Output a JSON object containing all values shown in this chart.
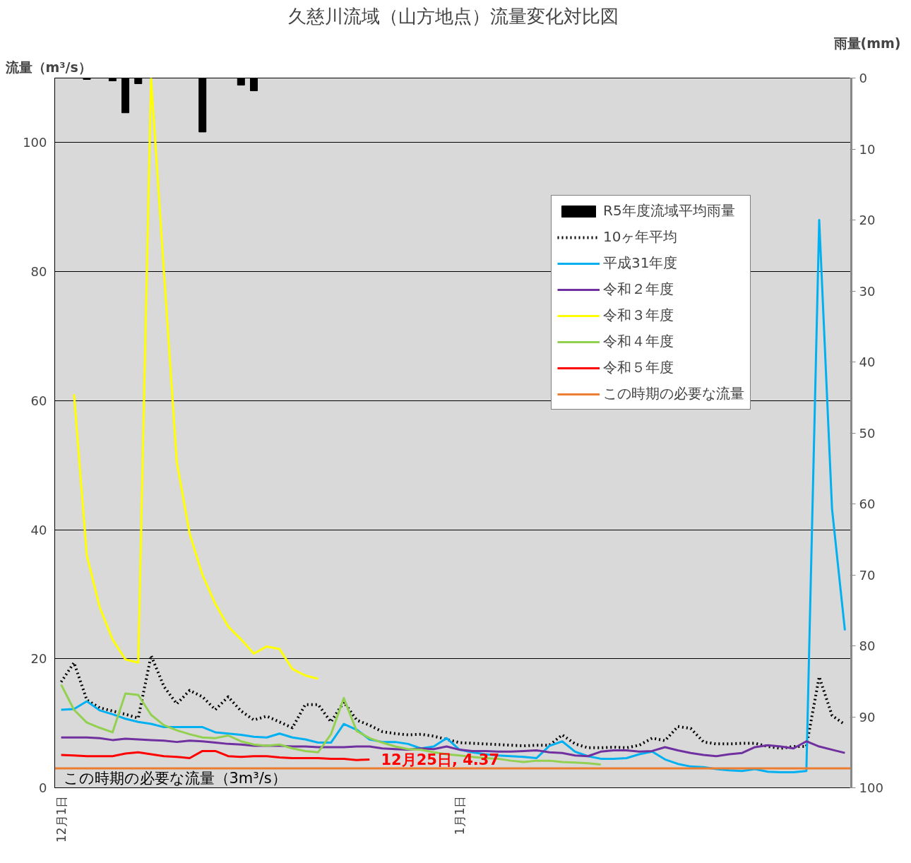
{
  "chart_data": {
    "type": "line",
    "title": "久慈川流域（山方地点）流量変化対比図",
    "ylabel": "流量（m³/s）",
    "y2label": "雨量(mm)",
    "categories": [
      "12月1日",
      null,
      null,
      null,
      null,
      null,
      null,
      null,
      null,
      null,
      null,
      null,
      null,
      null,
      null,
      null,
      null,
      null,
      null,
      null,
      null,
      null,
      null,
      null,
      null,
      null,
      null,
      null,
      null,
      null,
      null,
      "1月1日",
      null,
      null,
      null,
      null,
      null,
      null,
      null,
      null,
      null,
      null,
      null,
      null,
      null,
      null,
      null,
      null,
      null,
      null,
      null,
      null,
      null,
      null,
      null,
      null,
      null,
      null,
      null,
      null,
      null,
      null
    ],
    "ylim": [
      0,
      110
    ],
    "yticks": [
      0,
      20,
      40,
      60,
      80,
      100
    ],
    "y2lim": [
      100,
      0
    ],
    "y2ticks": [
      0,
      10,
      20,
      30,
      40,
      50,
      60,
      70,
      80,
      90,
      100
    ],
    "grid": "y",
    "legend": "top right",
    "series": [
      {
        "name": "R5年度流域平均雨量",
        "type": "bar",
        "axis": "y2",
        "color": "#000000",
        "values": [
          null,
          null,
          0.2,
          null,
          0.4,
          4.9,
          0.8,
          null,
          null,
          null,
          null,
          7.6,
          null,
          null,
          1.0,
          1.8,
          null,
          null,
          null,
          null,
          null,
          null,
          null,
          null,
          null,
          null,
          null,
          null,
          null,
          null,
          null,
          null,
          null,
          null,
          null,
          null,
          null,
          null,
          null,
          null,
          null,
          null,
          null,
          null,
          null,
          null,
          null,
          null,
          null,
          null,
          null,
          null,
          null,
          null,
          null,
          null,
          null,
          null,
          null,
          null,
          null,
          null
        ]
      },
      {
        "name": "10ヶ年平均",
        "color": "#000000",
        "line_style": "dotted",
        "values": [
          16.4,
          19.4,
          13.6,
          12.4,
          11.9,
          11.4,
          10.8,
          20.5,
          15.7,
          13.0,
          15.1,
          14.1,
          12.1,
          14.1,
          11.9,
          10.5,
          11.1,
          10.2,
          9.3,
          12.9,
          12.9,
          10.2,
          13.3,
          10.5,
          9.7,
          8.7,
          8.4,
          8.2,
          8.3,
          8.0,
          7.5,
          7.0,
          6.9,
          6.8,
          6.7,
          6.6,
          6.5,
          6.6,
          6.6,
          8.2,
          6.8,
          6.2,
          6.2,
          6.3,
          6.2,
          6.6,
          7.7,
          7.3,
          9.5,
          9.2,
          7.1,
          6.8,
          6.8,
          6.9,
          6.9,
          6.4,
          6.1,
          6.4,
          6.4,
          17.2,
          11.2,
          9.8
        ]
      },
      {
        "name": "平成31年度",
        "color": "#00b0f0",
        "values": [
          12.1,
          12.2,
          13.4,
          12.0,
          11.4,
          10.7,
          10.2,
          9.9,
          9.4,
          9.4,
          9.4,
          9.4,
          8.6,
          8.4,
          8.2,
          7.9,
          7.8,
          8.4,
          7.8,
          7.5,
          7.0,
          7.0,
          9.9,
          9.0,
          7.5,
          7.1,
          7.1,
          6.8,
          6.1,
          6.4,
          7.7,
          5.9,
          5.5,
          5.2,
          5.0,
          4.9,
          4.8,
          4.6,
          6.5,
          7.2,
          5.6,
          4.9,
          4.5,
          4.5,
          4.6,
          5.2,
          5.6,
          4.4,
          3.7,
          3.3,
          3.2,
          2.9,
          2.7,
          2.6,
          2.9,
          2.5,
          2.4,
          2.4,
          2.6,
          88.0,
          43.2,
          24.4
        ]
      },
      {
        "name": "令和２年度",
        "color": "#7030a0",
        "values": [
          7.8,
          7.8,
          7.8,
          7.7,
          7.4,
          7.6,
          7.5,
          7.4,
          7.3,
          7.1,
          7.3,
          7.2,
          7.0,
          6.8,
          6.7,
          6.5,
          6.5,
          6.5,
          6.4,
          6.4,
          6.3,
          6.3,
          6.3,
          6.4,
          6.4,
          6.1,
          6.0,
          5.9,
          6.1,
          6.0,
          6.4,
          5.9,
          5.7,
          5.7,
          5.6,
          5.6,
          5.7,
          5.8,
          5.5,
          5.4,
          5.0,
          4.9,
          5.6,
          5.8,
          5.8,
          5.6,
          5.7,
          6.3,
          5.8,
          5.4,
          5.1,
          4.9,
          5.2,
          5.4,
          6.3,
          6.6,
          6.4,
          6.1,
          7.2,
          6.4,
          5.9,
          5.4
        ]
      },
      {
        "name": "令和３年度",
        "color": "#ffff00",
        "values": [
          null,
          61,
          36,
          28,
          23,
          19.9,
          19.4,
          110,
          80,
          50.5,
          39.4,
          33,
          28.5,
          25,
          23.0,
          20.8,
          21.9,
          21.5,
          18.4,
          17.4,
          16.9,
          null,
          null,
          null,
          null,
          null,
          null,
          null,
          null,
          null,
          null,
          null,
          null,
          null,
          null,
          null,
          null,
          null,
          null,
          null,
          null,
          null,
          null,
          null,
          null,
          null,
          null,
          null,
          null,
          null,
          null,
          null,
          null,
          null,
          null,
          null,
          null,
          null,
          null,
          null,
          null,
          null
        ]
      },
      {
        "name": "令和４年度",
        "color": "#92d050",
        "values": [
          16.0,
          12.1,
          10.1,
          9.3,
          8.6,
          14.6,
          14.4,
          11.3,
          9.7,
          8.9,
          8.3,
          7.8,
          7.7,
          8.1,
          7.2,
          6.7,
          6.5,
          6.7,
          6.1,
          5.7,
          5.5,
          8.3,
          13.9,
          8.8,
          7.7,
          7.0,
          6.4,
          6.0,
          5.9,
          5.5,
          5.2,
          5.0,
          4.8,
          4.6,
          4.5,
          4.2,
          4.0,
          4.2,
          4.2,
          4.0,
          3.9,
          3.8,
          3.6,
          null,
          null,
          null,
          null,
          null,
          null,
          null,
          null,
          null,
          null,
          null,
          null,
          null,
          null,
          null,
          null,
          null,
          null,
          null
        ]
      },
      {
        "name": "令和５年度",
        "color": "#ff0000",
        "values": [
          5.1,
          5.0,
          4.9,
          4.9,
          4.9,
          5.3,
          5.5,
          5.2,
          4.9,
          4.8,
          4.6,
          5.7,
          5.7,
          4.9,
          4.8,
          4.9,
          4.9,
          4.7,
          4.6,
          4.6,
          4.6,
          4.5,
          4.5,
          4.3,
          4.37,
          null,
          null,
          null,
          null,
          null,
          null,
          null,
          null,
          null,
          null,
          null,
          null,
          null,
          null,
          null,
          null,
          null,
          null,
          null,
          null,
          null,
          null,
          null,
          null,
          null,
          null,
          null,
          null,
          null,
          null,
          null,
          null,
          null,
          null,
          null,
          null,
          null
        ]
      }
    ],
    "ref_lines": [
      {
        "axis": "y",
        "value": 3,
        "label": "この時期の必要な流量",
        "color": "#ed7d31"
      }
    ],
    "annotations": [
      "この時期の必要な流量（3m³/s）",
      "12月25日, 4.37"
    ]
  }
}
